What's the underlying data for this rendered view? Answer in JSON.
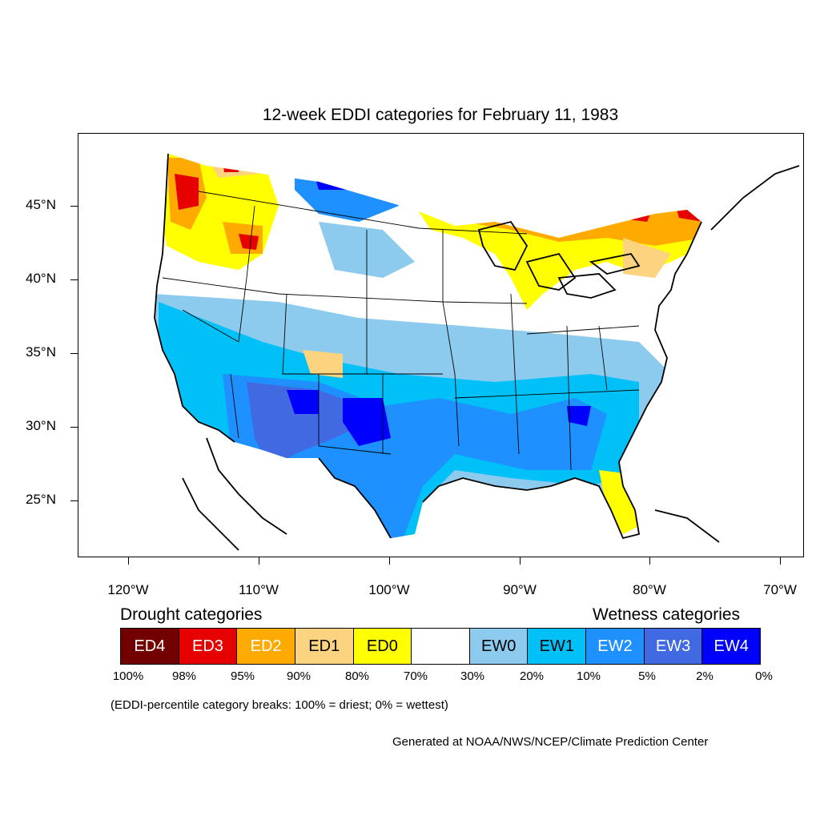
{
  "title": "12-week EDDI categories for February 11, 1983",
  "lat_labels": [
    "45°N",
    "40°N",
    "35°N",
    "30°N",
    "25°N"
  ],
  "lon_labels": [
    "120°W",
    "110°W",
    "100°W",
    "90°W",
    "80°W",
    "70°W"
  ],
  "legend": {
    "drought_heading": "Drought categories",
    "wetness_heading": "Wetness categories",
    "categories": [
      {
        "label": "ED4",
        "color": "#730000",
        "text_color": "#ffffff"
      },
      {
        "label": "ED3",
        "color": "#e60000",
        "text_color": "#ffffff"
      },
      {
        "label": "ED2",
        "color": "#ffaa00",
        "text_color": "#ffffff"
      },
      {
        "label": "ED1",
        "color": "#fcd37f",
        "text_color": "#000000"
      },
      {
        "label": "ED0",
        "color": "#ffff00",
        "text_color": "#000000"
      },
      {
        "label": "",
        "color": "#ffffff",
        "text_color": "#000000"
      },
      {
        "label": "EW0",
        "color": "#8ccbee",
        "text_color": "#000000"
      },
      {
        "label": "EW1",
        "color": "#00c0f8",
        "text_color": "#000000"
      },
      {
        "label": "EW2",
        "color": "#1e90ff",
        "text_color": "#ffffff"
      },
      {
        "label": "EW3",
        "color": "#4169e1",
        "text_color": "#ffffff"
      },
      {
        "label": "EW4",
        "color": "#0000ff",
        "text_color": "#ffffff"
      }
    ],
    "breaks": [
      "100%",
      "98%",
      "95%",
      "90%",
      "80%",
      "70%",
      "30%",
      "20%",
      "10%",
      "5%",
      "2%",
      "0%"
    ]
  },
  "note": "(EDDI-percentile category breaks: 100% = driest; 0% = wettest)",
  "credit": "Generated at NOAA/NWS/NCEP/Climate Prediction Center"
}
